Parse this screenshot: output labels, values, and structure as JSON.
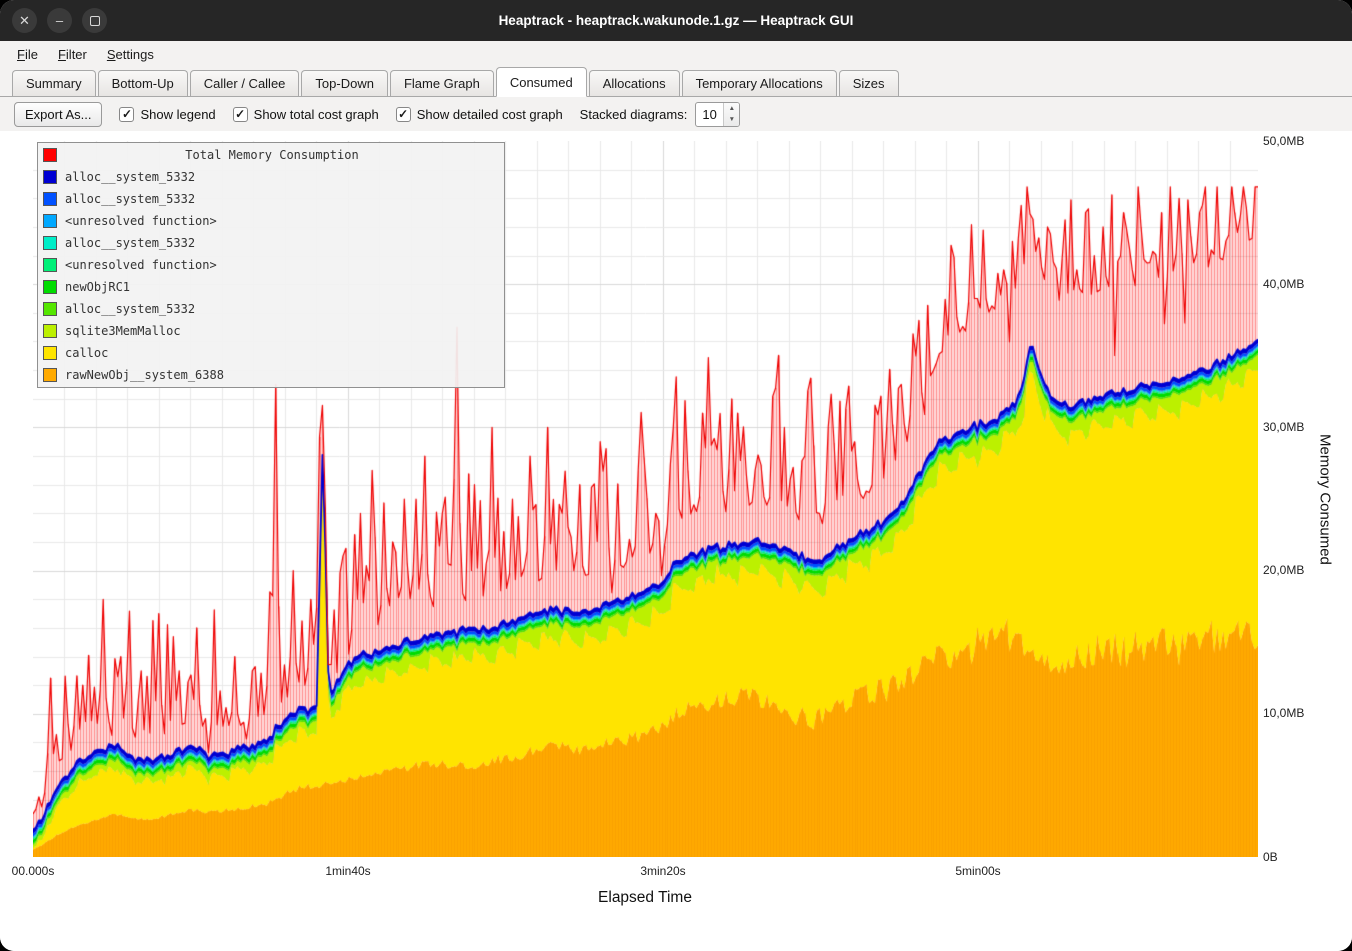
{
  "window": {
    "title": "Heaptrack - heaptrack.wakunode.1.gz — Heaptrack GUI"
  },
  "menu_bar": {
    "items": [
      {
        "label": "File"
      },
      {
        "label": "Filter"
      },
      {
        "label": "Settings"
      }
    ]
  },
  "tabs": [
    {
      "label": "Summary",
      "active": false
    },
    {
      "label": "Bottom-Up",
      "active": false
    },
    {
      "label": "Caller / Callee",
      "active": false
    },
    {
      "label": "Top-Down",
      "active": false
    },
    {
      "label": "Flame Graph",
      "active": false
    },
    {
      "label": "Consumed",
      "active": true
    },
    {
      "label": "Allocations",
      "active": false
    },
    {
      "label": "Temporary Allocations",
      "active": false
    },
    {
      "label": "Sizes",
      "active": false
    }
  ],
  "toolbar": {
    "export_label": "Export As...",
    "checkboxes": [
      {
        "label": "Show legend",
        "checked": true
      },
      {
        "label": "Show total cost graph",
        "checked": true
      },
      {
        "label": "Show detailed cost graph",
        "checked": true
      }
    ],
    "stacked_diagrams_label": "Stacked diagrams:",
    "stacked_diagrams_value": "10",
    "check_glyph": "✓"
  },
  "chart": {
    "legend": {
      "title": "Total Memory Consumption",
      "title_color": "#ff0000",
      "entries": [
        {
          "label": "alloc__system_5332",
          "color": "#0000d2"
        },
        {
          "label": "alloc__system_5332",
          "color": "#0051ff"
        },
        {
          "label": "<unresolved function>",
          "color": "#00a8ff"
        },
        {
          "label": "alloc__system_5332",
          "color": "#00eec8"
        },
        {
          "label": "<unresolved function>",
          "color": "#00f078"
        },
        {
          "label": "newObjRC1",
          "color": "#00dc00"
        },
        {
          "label": "alloc__system_5332",
          "color": "#55e600"
        },
        {
          "label": "sqlite3MemMalloc",
          "color": "#bcf000"
        },
        {
          "label": "calloc",
          "color": "#ffe400"
        },
        {
          "label": "rawNewObj__system_6388",
          "color": "#ffaa00"
        }
      ]
    },
    "y_axis": {
      "label": "Memory Consumed",
      "ticks": [
        "50,0MB",
        "40,0MB",
        "30,0MB",
        "20,0MB",
        "10,0MB",
        "0B"
      ]
    },
    "x_axis": {
      "label": "Elapsed Time",
      "ticks": [
        {
          "label": "00.000s",
          "t": 0
        },
        {
          "label": "1min40s",
          "t": 100
        },
        {
          "label": "3min20s",
          "t": 200
        },
        {
          "label": "5min00s",
          "t": 300
        }
      ]
    }
  },
  "chart_data": {
    "type": "area",
    "title": "Total Memory Consumption",
    "unit": "MB",
    "y_max_mb": 50,
    "t_max_s": 389,
    "samples": 420,
    "seed": 11,
    "grid": {
      "x_step_s": 10,
      "y_step_mb": 2
    },
    "total_series": {
      "name": "Total Memory Consumption",
      "color": "#ff0000"
    },
    "orange_series": {
      "name": "rawNewObj__system_6388",
      "color": "#ffaa00"
    },
    "yellow_series": {
      "name": "calloc",
      "color": "#ffe400"
    },
    "sqlite_series": {
      "name": "sqlite3MemMalloc",
      "color": "#bcf000",
      "base_mb": 0.15
    },
    "sawtooth": {
      "period_s": 7,
      "min_mb": 0.15,
      "amp_mb": 1.45
    },
    "bands_bottom_to_top": [
      {
        "name": "alloc__system_5332",
        "color": "#55e600",
        "mb": 0.12
      },
      {
        "name": "newObjRC1",
        "color": "#00dc00",
        "mb": 0.24
      },
      {
        "name": "<unresolved function>",
        "color": "#00f078",
        "mb": 0.1
      },
      {
        "name": "alloc__system_5332",
        "color": "#00eec8",
        "mb": 0.07
      },
      {
        "name": "<unresolved function>",
        "color": "#00a8ff",
        "mb": 0.07
      },
      {
        "name": "alloc__system_5332",
        "color": "#0051ff",
        "mb": 0.2
      },
      {
        "name": "alloc__system_5332",
        "color": "#0000d2",
        "mb": 0.26
      }
    ],
    "stack_top_mb": [
      [
        0,
        1.8
      ],
      [
        4,
        3.2
      ],
      [
        8,
        5
      ],
      [
        14,
        6.6
      ],
      [
        20,
        7.2
      ],
      [
        26,
        7.8
      ],
      [
        32,
        7
      ],
      [
        38,
        6.8
      ],
      [
        44,
        7.3
      ],
      [
        50,
        7.7
      ],
      [
        56,
        7.1
      ],
      [
        62,
        7.4
      ],
      [
        68,
        7.7
      ],
      [
        74,
        8.1
      ],
      [
        78,
        9.2
      ],
      [
        82,
        10.2
      ],
      [
        86,
        10.4
      ],
      [
        90,
        10.1
      ],
      [
        92,
        29
      ],
      [
        94,
        10.8
      ],
      [
        97,
        12.6
      ],
      [
        100,
        13.5
      ],
      [
        105,
        14.2
      ],
      [
        112,
        14.6
      ],
      [
        120,
        15.2
      ],
      [
        128,
        15.5
      ],
      [
        136,
        15.8
      ],
      [
        144,
        16
      ],
      [
        152,
        16.5
      ],
      [
        158,
        17
      ],
      [
        166,
        17.3
      ],
      [
        174,
        17
      ],
      [
        182,
        17.8
      ],
      [
        188,
        18.1
      ],
      [
        194,
        18.5
      ],
      [
        200,
        19.2
      ],
      [
        204,
        20.6
      ],
      [
        208,
        21.1
      ],
      [
        214,
        21.4
      ],
      [
        222,
        21.8
      ],
      [
        230,
        22
      ],
      [
        238,
        21.6
      ],
      [
        244,
        21
      ],
      [
        250,
        20.6
      ],
      [
        256,
        21.8
      ],
      [
        264,
        22.6
      ],
      [
        270,
        23.4
      ],
      [
        276,
        24.7
      ],
      [
        282,
        27
      ],
      [
        288,
        29.1
      ],
      [
        294,
        29.7
      ],
      [
        300,
        30.1
      ],
      [
        306,
        30.6
      ],
      [
        312,
        31.6
      ],
      [
        315,
        34
      ],
      [
        317,
        36
      ],
      [
        320,
        33.5
      ],
      [
        324,
        32
      ],
      [
        330,
        31.6
      ],
      [
        336,
        31.9
      ],
      [
        342,
        32.3
      ],
      [
        350,
        32.7
      ],
      [
        358,
        33.1
      ],
      [
        366,
        33.7
      ],
      [
        374,
        34.3
      ],
      [
        382,
        35.1
      ],
      [
        389,
        36
      ]
    ],
    "orange_top_mb": [
      [
        0,
        0.5
      ],
      [
        4,
        1
      ],
      [
        8,
        1.6
      ],
      [
        14,
        2.2
      ],
      [
        20,
        2.6
      ],
      [
        26,
        3
      ],
      [
        32,
        2.7
      ],
      [
        38,
        2.6
      ],
      [
        44,
        3
      ],
      [
        50,
        3.3
      ],
      [
        56,
        3.1
      ],
      [
        62,
        3.3
      ],
      [
        68,
        3.5
      ],
      [
        74,
        3.7
      ],
      [
        80,
        4.4
      ],
      [
        86,
        4.9
      ],
      [
        94,
        5.1
      ],
      [
        100,
        5.5
      ],
      [
        110,
        5.9
      ],
      [
        120,
        6.3
      ],
      [
        130,
        6.5
      ],
      [
        140,
        6.4
      ],
      [
        150,
        6.9
      ],
      [
        158,
        7.3
      ],
      [
        166,
        7.7
      ],
      [
        174,
        7.4
      ],
      [
        182,
        7.9
      ],
      [
        190,
        8.3
      ],
      [
        198,
        8.9
      ],
      [
        204,
        9.9
      ],
      [
        210,
        10.5
      ],
      [
        218,
        10.9
      ],
      [
        226,
        11.3
      ],
      [
        234,
        10.9
      ],
      [
        242,
        9.9
      ],
      [
        248,
        9.4
      ],
      [
        254,
        10.3
      ],
      [
        262,
        11.1
      ],
      [
        270,
        11.6
      ],
      [
        276,
        12.3
      ],
      [
        282,
        13.5
      ],
      [
        288,
        14.3
      ],
      [
        294,
        13.9
      ],
      [
        300,
        14.9
      ],
      [
        306,
        16.3
      ],
      [
        312,
        14.9
      ],
      [
        318,
        13.9
      ],
      [
        322,
        13.1
      ],
      [
        328,
        13.6
      ],
      [
        334,
        14.1
      ],
      [
        340,
        14.9
      ],
      [
        348,
        14.2
      ],
      [
        356,
        15.3
      ],
      [
        364,
        14.6
      ],
      [
        372,
        15.7
      ],
      [
        380,
        14.9
      ],
      [
        386,
        15.9
      ],
      [
        389,
        14.6
      ]
    ],
    "orange_noise_amp_mb": [
      [
        0,
        0.05
      ],
      [
        60,
        0.15
      ],
      [
        120,
        0.3
      ],
      [
        200,
        0.5
      ],
      [
        260,
        0.8
      ],
      [
        300,
        1.2
      ],
      [
        389,
        1.3
      ]
    ],
    "total_extra_base_mb": [
      [
        0,
        0.6
      ],
      [
        20,
        1.5
      ],
      [
        40,
        1.8
      ],
      [
        60,
        1.6
      ],
      [
        80,
        1.4
      ],
      [
        100,
        1.8
      ],
      [
        130,
        2
      ],
      [
        160,
        2.2
      ],
      [
        200,
        2.4
      ],
      [
        240,
        2.8
      ],
      [
        262,
        2.4
      ],
      [
        276,
        3.5
      ],
      [
        288,
        6
      ],
      [
        300,
        7.5
      ],
      [
        312,
        8
      ],
      [
        324,
        7
      ],
      [
        336,
        7.5
      ],
      [
        350,
        7
      ],
      [
        364,
        7.5
      ],
      [
        378,
        7
      ],
      [
        389,
        7.5
      ]
    ],
    "total_extra_amp_mb": [
      [
        0,
        2.5
      ],
      [
        15,
        8
      ],
      [
        30,
        9
      ],
      [
        60,
        9
      ],
      [
        80,
        10
      ],
      [
        100,
        10
      ],
      [
        130,
        10
      ],
      [
        160,
        9
      ],
      [
        200,
        11
      ],
      [
        240,
        12
      ],
      [
        262,
        9
      ],
      [
        276,
        9
      ],
      [
        288,
        8
      ],
      [
        300,
        8
      ],
      [
        315,
        8
      ],
      [
        330,
        7.5
      ],
      [
        350,
        8
      ],
      [
        365,
        7.5
      ],
      [
        389,
        8
      ]
    ],
    "spike_exponent": 3,
    "total_spikes": [
      [
        6,
        12.5
      ],
      [
        10,
        9
      ],
      [
        16,
        12
      ],
      [
        22,
        18
      ],
      [
        28,
        14
      ],
      [
        34,
        13
      ],
      [
        40,
        17
      ],
      [
        46,
        13
      ],
      [
        52,
        16
      ],
      [
        58,
        13
      ],
      [
        64,
        14
      ],
      [
        70,
        13
      ],
      [
        77,
        33
      ],
      [
        83,
        20
      ],
      [
        88,
        18
      ],
      [
        92,
        29.6
      ],
      [
        98,
        21
      ],
      [
        104,
        24
      ],
      [
        108,
        27
      ],
      [
        114,
        22
      ],
      [
        118,
        25
      ],
      [
        124,
        28
      ],
      [
        130,
        24
      ],
      [
        135,
        37
      ],
      [
        140,
        26
      ],
      [
        146,
        30
      ],
      [
        152,
        25
      ],
      [
        158,
        28
      ],
      [
        163,
        30
      ],
      [
        168,
        24
      ],
      [
        174,
        26
      ],
      [
        180,
        29
      ],
      [
        186,
        25
      ],
      [
        192,
        27
      ],
      [
        198,
        24
      ],
      [
        203,
        30
      ],
      [
        208,
        27
      ],
      [
        213,
        31
      ],
      [
        218,
        26
      ],
      [
        224,
        31
      ],
      [
        229,
        27
      ],
      [
        234,
        25
      ],
      [
        239,
        30
      ],
      [
        245,
        28
      ],
      [
        250,
        24
      ],
      [
        256,
        26
      ],
      [
        261,
        29
      ],
      [
        266,
        26
      ],
      [
        271,
        30
      ],
      [
        276,
        33
      ],
      [
        280,
        35
      ],
      [
        284,
        36
      ],
      [
        288,
        34
      ],
      [
        292,
        38
      ],
      [
        296,
        35
      ],
      [
        300,
        39
      ],
      [
        304,
        37
      ],
      [
        308,
        41
      ],
      [
        311,
        43
      ],
      [
        314,
        45.5
      ],
      [
        316,
        46.3
      ],
      [
        319,
        42
      ],
      [
        322,
        44
      ],
      [
        325,
        40
      ],
      [
        328,
        44.5
      ],
      [
        331,
        41
      ],
      [
        334,
        45
      ],
      [
        337,
        42
      ],
      [
        340,
        44
      ],
      [
        343,
        40
      ],
      [
        346,
        45
      ],
      [
        349,
        41
      ],
      [
        352,
        44
      ],
      [
        355,
        40
      ],
      [
        358,
        45
      ],
      [
        361,
        42
      ],
      [
        364,
        46
      ],
      [
        367,
        43
      ],
      [
        370,
        45
      ],
      [
        373,
        41
      ],
      [
        376,
        46
      ],
      [
        379,
        43
      ],
      [
        382,
        45
      ],
      [
        385,
        42
      ],
      [
        388,
        45.5
      ]
    ],
    "total_cap_mb": 46.8
  }
}
